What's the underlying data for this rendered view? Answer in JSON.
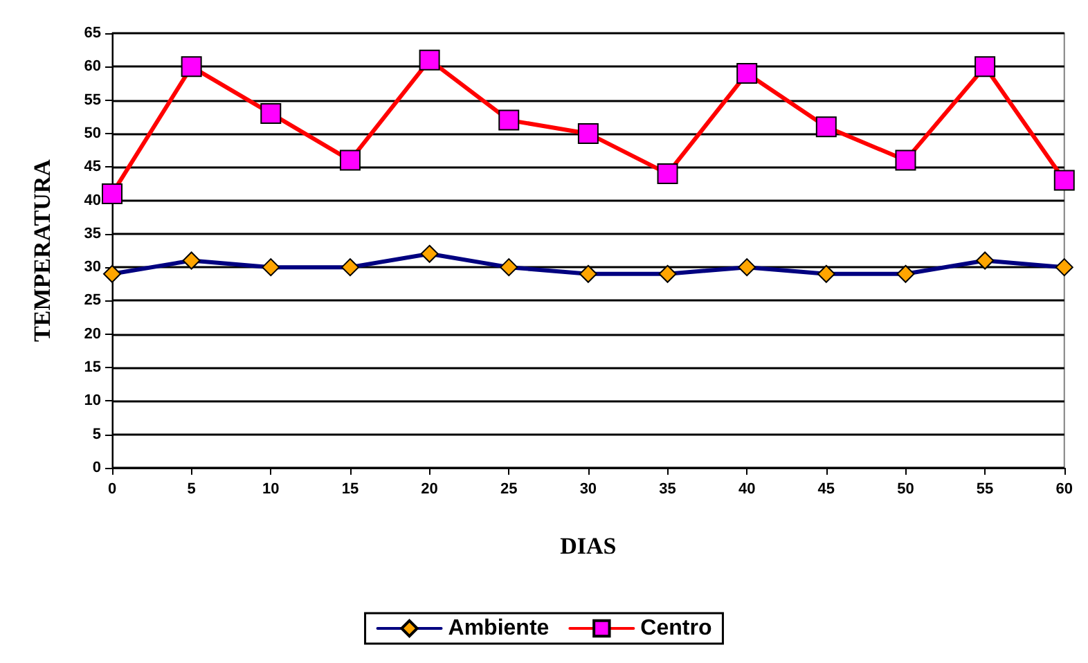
{
  "chart_data": {
    "type": "line",
    "xlabel": "DIAS",
    "ylabel": "TEMPERATURA",
    "x": [
      0,
      5,
      10,
      15,
      20,
      25,
      30,
      35,
      40,
      45,
      50,
      55,
      60
    ],
    "series": [
      {
        "name": "Ambiente",
        "color": "#000080",
        "marker": "diamond",
        "values": [
          29,
          31,
          30,
          30,
          32,
          30,
          29,
          29,
          30,
          29,
          29,
          31,
          30
        ]
      },
      {
        "name": "Centro",
        "color": "#ff0000",
        "marker": "square",
        "values": [
          41,
          60,
          53,
          46,
          61,
          52,
          50,
          44,
          59,
          51,
          46,
          60,
          43
        ]
      }
    ],
    "xlim": [
      0,
      60
    ],
    "xticks": [
      0,
      5,
      10,
      15,
      20,
      25,
      30,
      35,
      40,
      45,
      50,
      55,
      60
    ],
    "ylim": [
      0,
      65
    ],
    "yticks": [
      0,
      5,
      10,
      15,
      20,
      25,
      30,
      35,
      40,
      45,
      50,
      55,
      60,
      65
    ],
    "grid": "y",
    "legend": "bottom",
    "line_style": "solid"
  }
}
